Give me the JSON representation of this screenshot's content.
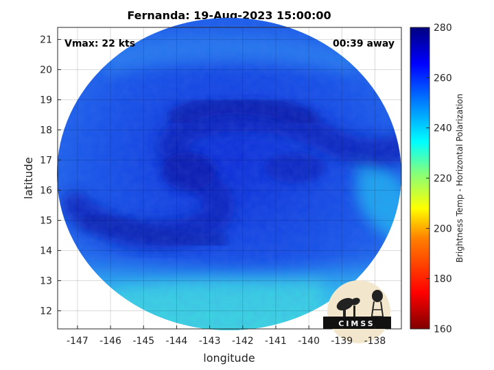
{
  "title": "Fernanda: 19-Aug-2023 15:00:00",
  "annotations": {
    "vmax": "Vmax: 22 kts",
    "time_away": "00:39 away"
  },
  "logo_text": "CIMSS",
  "axes": {
    "xlabel": "longitude",
    "ylabel": "latitude",
    "xlim": [
      -147.6,
      -137.2
    ],
    "ylim": [
      11.4,
      21.4
    ],
    "xticks": [
      -147,
      -146,
      -145,
      -144,
      -143,
      -142,
      -141,
      -140,
      -139,
      -138
    ],
    "yticks": [
      12,
      13,
      14,
      15,
      16,
      17,
      18,
      19,
      20,
      21
    ],
    "xtick_labels": [
      "-147",
      "-146",
      "-145",
      "-144",
      "-143",
      "-142",
      "-141",
      "-140",
      "-139",
      "-138"
    ],
    "ytick_labels": [
      "12",
      "13",
      "14",
      "15",
      "16",
      "17",
      "18",
      "19",
      "20",
      "21"
    ],
    "grid": true
  },
  "colorbar": {
    "label": "Brightness Temp - Horizontal Polarization",
    "range": [
      160,
      280
    ],
    "ticks": [
      160,
      180,
      200,
      220,
      240,
      260,
      280
    ],
    "tick_labels": [
      "160",
      "180",
      "200",
      "220",
      "240",
      "260",
      "280"
    ],
    "colormap": [
      "#800000",
      "#ff0000",
      "#ff8000",
      "#ffff00",
      "#80ff80",
      "#00ffff",
      "#0080ff",
      "#0000ff",
      "#000080"
    ]
  },
  "chart_data": {
    "type": "heatmap",
    "title": "Fernanda: 19-Aug-2023 15:00:00",
    "xlabel": "longitude",
    "ylabel": "latitude",
    "xlim": [
      -147.6,
      -137.2
    ],
    "ylim": [
      11.4,
      21.4
    ],
    "value_range": [
      160,
      280
    ],
    "colorbar_label": "Brightness Temp - Horizontal Polarization",
    "swath_center": [
      -142.4,
      16.4
    ],
    "circulation_center": [
      -143.6,
      16.6
    ],
    "field_description_values": {
      "background_brightness_temp": 255,
      "cold_band_brightness_temp": 270,
      "southern_warm_region_brightness_temp": 236
    }
  }
}
